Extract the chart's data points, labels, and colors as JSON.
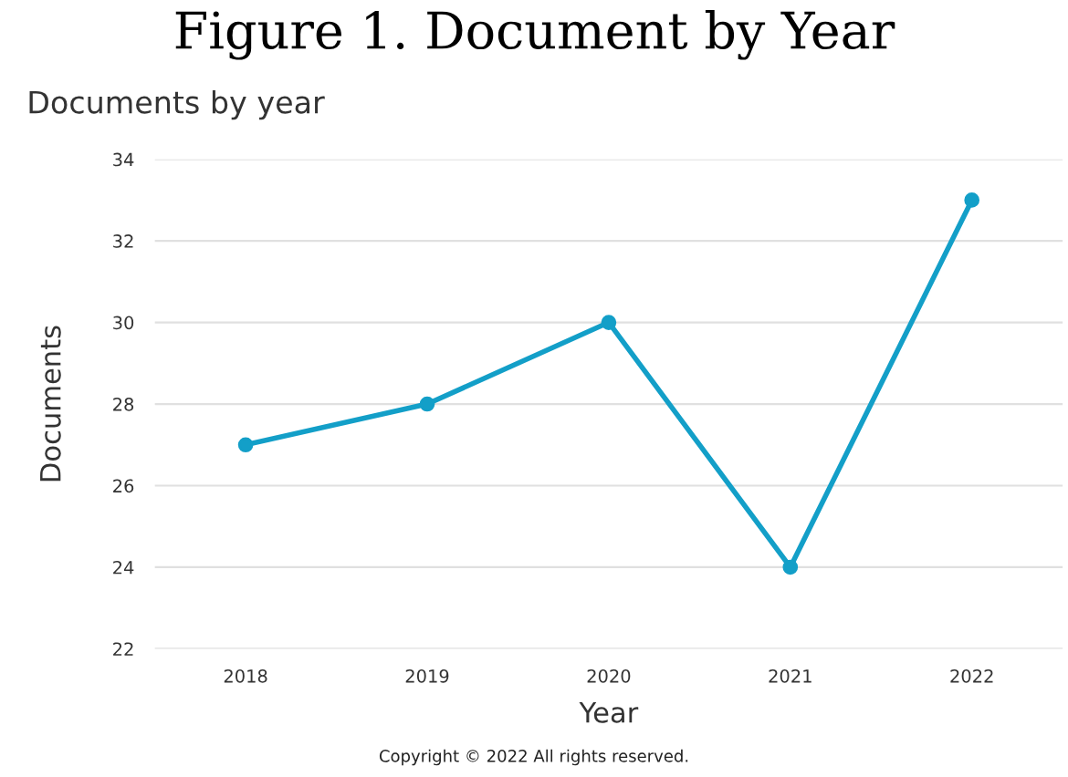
{
  "chart_data": {
    "type": "line",
    "title": "Figure 1. Document by Year",
    "subtitle": "Documents by year",
    "xlabel": "Year",
    "ylabel": "Documents",
    "categories": [
      "2018",
      "2019",
      "2020",
      "2021",
      "2022"
    ],
    "series": [
      {
        "color": "#139fc8",
        "values": [
          27,
          28,
          30,
          24,
          33
        ]
      }
    ],
    "ylim": [
      22,
      34
    ],
    "yticks": [
      22,
      24,
      26,
      28,
      30,
      32,
      34
    ],
    "grid": "y",
    "marker": "circle",
    "line_style": "solid",
    "annotations": [
      "Copyright © 2022 All rights reserved."
    ]
  }
}
